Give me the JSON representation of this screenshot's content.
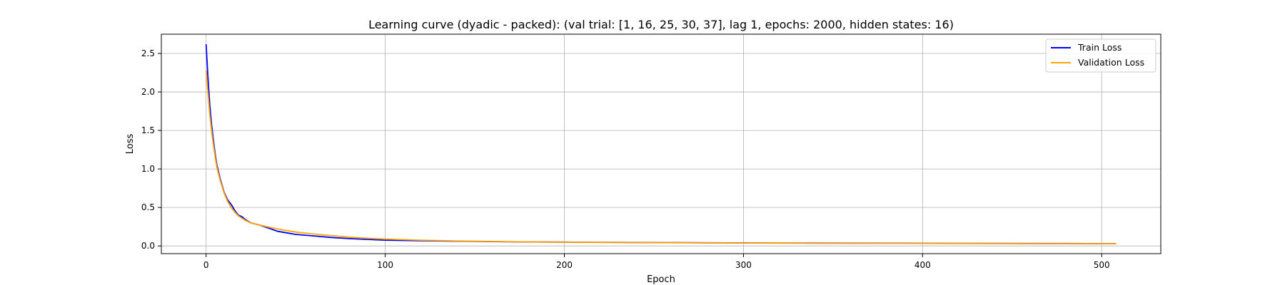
{
  "chart_data": {
    "type": "line",
    "title": "Learning curve (dyadic - packed): (val trial: [1, 16, 25, 30, 37], lag 1, epochs: 2000, hidden states: 16)",
    "xlabel": "Epoch",
    "ylabel": "Loss",
    "xlim": [
      -25,
      533
    ],
    "ylim": [
      -0.1,
      2.75
    ],
    "xticks": [
      0,
      100,
      200,
      300,
      400,
      500
    ],
    "yticks": [
      0.0,
      0.5,
      1.0,
      1.5,
      2.0,
      2.5
    ],
    "xtick_labels": [
      "0",
      "100",
      "200",
      "300",
      "400",
      "500"
    ],
    "ytick_labels": [
      "0.0",
      "0.5",
      "1.0",
      "1.5",
      "2.0",
      "2.5"
    ],
    "grid": true,
    "legend_position": "top-right",
    "series": [
      {
        "name": "Train Loss",
        "color": "#0000ff",
        "x": [
          0,
          1,
          2,
          3,
          4,
          5,
          6,
          8,
          10,
          12,
          14,
          16,
          18,
          20,
          22,
          25,
          30,
          35,
          40,
          45,
          50,
          60,
          70,
          80,
          90,
          100,
          120,
          140,
          160,
          180,
          200,
          220,
          240,
          260,
          280,
          300,
          320,
          340,
          360,
          380,
          400,
          420,
          440,
          460,
          480,
          500,
          508
        ],
        "y": [
          2.62,
          2.2,
          1.85,
          1.58,
          1.38,
          1.2,
          1.05,
          0.86,
          0.7,
          0.6,
          0.54,
          0.46,
          0.4,
          0.38,
          0.34,
          0.3,
          0.27,
          0.23,
          0.19,
          0.17,
          0.15,
          0.13,
          0.11,
          0.095,
          0.085,
          0.075,
          0.068,
          0.062,
          0.056,
          0.052,
          0.05,
          0.047,
          0.045,
          0.043,
          0.041,
          0.04,
          0.038,
          0.037,
          0.036,
          0.035,
          0.034,
          0.033,
          0.032,
          0.031,
          0.031,
          0.03,
          0.03
        ]
      },
      {
        "name": "Validation Loss",
        "color": "#ffa500",
        "x": [
          0,
          1,
          2,
          3,
          4,
          5,
          6,
          8,
          10,
          12,
          14,
          16,
          18,
          20,
          22,
          25,
          30,
          35,
          40,
          45,
          50,
          60,
          70,
          80,
          90,
          100,
          120,
          140,
          160,
          180,
          200,
          220,
          240,
          260,
          280,
          300,
          320,
          340,
          360,
          380,
          400,
          420,
          440,
          460,
          480,
          500,
          508
        ],
        "y": [
          2.28,
          2.0,
          1.72,
          1.5,
          1.32,
          1.16,
          1.02,
          0.84,
          0.69,
          0.58,
          0.5,
          0.44,
          0.39,
          0.36,
          0.33,
          0.3,
          0.27,
          0.245,
          0.22,
          0.2,
          0.18,
          0.155,
          0.135,
          0.115,
          0.1,
          0.09,
          0.075,
          0.065,
          0.058,
          0.053,
          0.049,
          0.046,
          0.044,
          0.042,
          0.04,
          0.038,
          0.037,
          0.035,
          0.034,
          0.033,
          0.032,
          0.031,
          0.031,
          0.03,
          0.03,
          0.03,
          0.029
        ]
      }
    ]
  }
}
